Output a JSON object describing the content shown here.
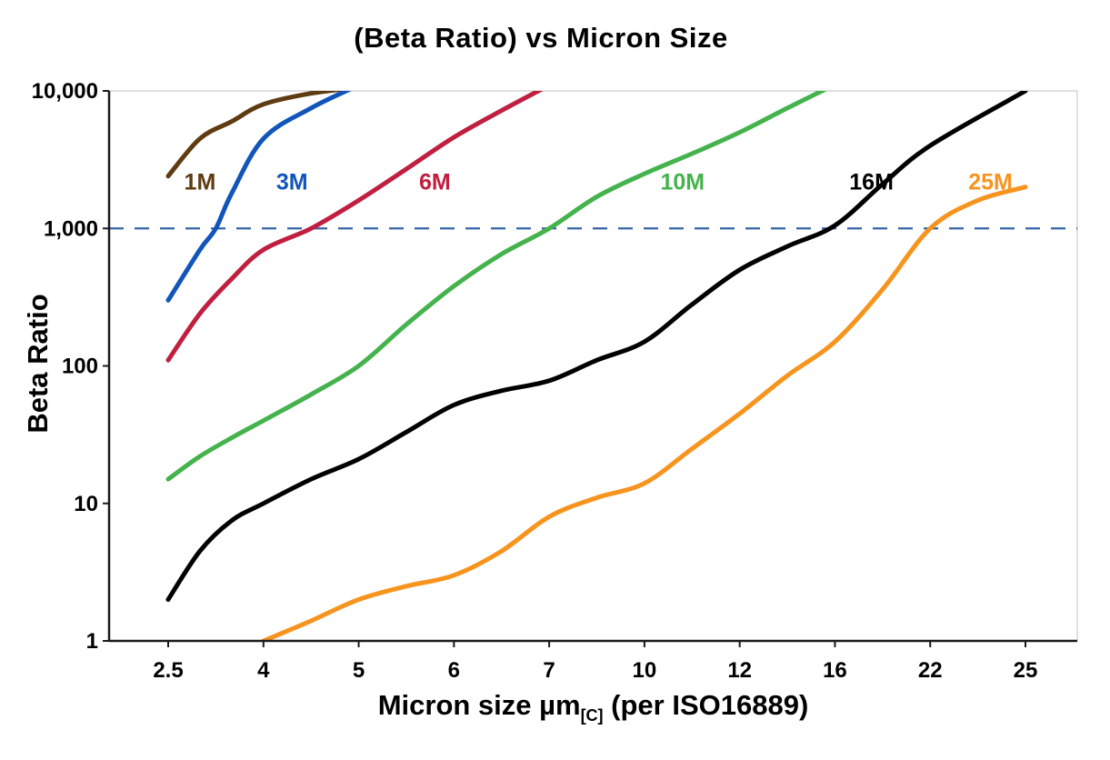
{
  "chart_data": {
    "type": "line",
    "title": "(Beta Ratio) vs Micron Size",
    "ylabel": "Beta Ratio",
    "xlabel_main": "Micron size µm",
    "xlabel_sub": "[C]",
    "xlabel_rest": " (per ISO16889)",
    "y_scale": "log",
    "ylim": [
      1,
      10000
    ],
    "x_ticks": [
      2.5,
      4,
      5,
      6,
      7,
      10,
      12,
      16,
      22,
      25
    ],
    "x_tick_labels": [
      "2.5",
      "4",
      "5",
      "6",
      "7",
      "10",
      "12",
      "16",
      "22",
      "25"
    ],
    "y_ticks": [
      1,
      10,
      100,
      1000,
      10000
    ],
    "y_tick_labels": [
      "1",
      "10",
      "100",
      "1,000",
      "10,000"
    ],
    "grid": "off",
    "legend_position": "inline-labels",
    "reference_line": {
      "y": 1000,
      "color": "#3465a8",
      "style": "dashed"
    },
    "axis_color": "#1a1a1a",
    "frame_color": "#c0c0c0",
    "series": [
      {
        "name": "1M",
        "color": "#5f3b12",
        "label": {
          "x": 3.0,
          "y": 2200
        },
        "points": [
          [
            2.5,
            2400
          ],
          [
            3,
            4500
          ],
          [
            3.5,
            6000
          ],
          [
            4,
            8000
          ],
          [
            4.5,
            9600
          ],
          [
            5,
            10600
          ]
        ]
      },
      {
        "name": "3M",
        "color": "#1155bb",
        "label": {
          "x": 4.3,
          "y": 2200
        },
        "points": [
          [
            2.5,
            300
          ],
          [
            3,
            700
          ],
          [
            3.25,
            1000
          ],
          [
            3.5,
            1800
          ],
          [
            4,
            4500
          ],
          [
            4.5,
            7500
          ],
          [
            5,
            11000
          ]
        ]
      },
      {
        "name": "6M",
        "color": "#c01f3f",
        "label": {
          "x": 5.8,
          "y": 2200
        },
        "points": [
          [
            2.5,
            110
          ],
          [
            3,
            240
          ],
          [
            3.5,
            430
          ],
          [
            4,
            700
          ],
          [
            4.5,
            1000
          ],
          [
            5,
            1600
          ],
          [
            5.5,
            2700
          ],
          [
            6,
            4600
          ],
          [
            6.5,
            7200
          ],
          [
            7,
            11000
          ]
        ]
      },
      {
        "name": "10M",
        "color": "#45b34d",
        "label": {
          "x": 10.8,
          "y": 2200
        },
        "points": [
          [
            2.5,
            15
          ],
          [
            3,
            22
          ],
          [
            3.5,
            30
          ],
          [
            4,
            40
          ],
          [
            4.5,
            62
          ],
          [
            5,
            100
          ],
          [
            5.5,
            200
          ],
          [
            6,
            380
          ],
          [
            6.5,
            650
          ],
          [
            7,
            1000
          ],
          [
            8.5,
            1700
          ],
          [
            10,
            2500
          ],
          [
            11,
            3500
          ],
          [
            12,
            5000
          ],
          [
            14,
            7500
          ],
          [
            15.7,
            10500
          ]
        ]
      },
      {
        "name": "16M",
        "color": "#000000",
        "label": {
          "x": 18.3,
          "y": 2200
        },
        "points": [
          [
            2.5,
            2
          ],
          [
            3,
            4.5
          ],
          [
            3.5,
            7.5
          ],
          [
            4,
            10
          ],
          [
            4.5,
            15
          ],
          [
            5,
            21
          ],
          [
            5.5,
            33
          ],
          [
            6,
            52
          ],
          [
            6.5,
            66
          ],
          [
            7,
            78
          ],
          [
            8.5,
            110
          ],
          [
            10,
            150
          ],
          [
            11,
            280
          ],
          [
            12,
            500
          ],
          [
            14,
            740
          ],
          [
            16,
            1050
          ],
          [
            19,
            2100
          ],
          [
            22,
            4000
          ],
          [
            25,
            10000
          ]
        ]
      },
      {
        "name": "25M",
        "color": "#f7941e",
        "label": {
          "x": 23.9,
          "y": 2200
        },
        "points": [
          [
            4,
            1
          ],
          [
            4.5,
            1.4
          ],
          [
            5,
            2
          ],
          [
            5.5,
            2.5
          ],
          [
            6,
            3
          ],
          [
            6.5,
            4.5
          ],
          [
            7,
            8
          ],
          [
            8.5,
            11
          ],
          [
            10,
            14
          ],
          [
            11,
            25
          ],
          [
            12,
            45
          ],
          [
            14,
            85
          ],
          [
            16,
            150
          ],
          [
            19,
            360
          ],
          [
            22,
            1000
          ],
          [
            23.5,
            1600
          ],
          [
            25,
            2000
          ]
        ]
      }
    ]
  }
}
